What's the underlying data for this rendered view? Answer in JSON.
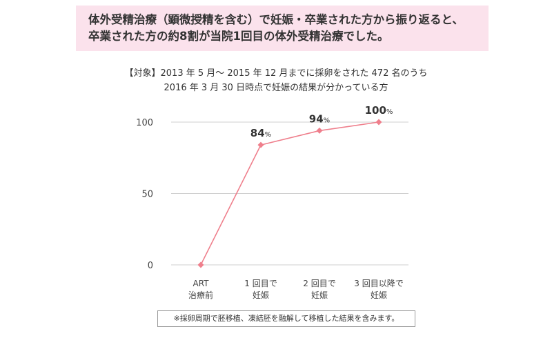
{
  "headline": {
    "line1": "体外受精治療（顕微授精を含む）で妊娠・卒業された方から振り返ると、",
    "line2": "卒業された方の約8割が当院1回目の体外受精治療でした。"
  },
  "subtitle": {
    "line1": "【対象】2013 年 5 月～ 2015 年 12 月までに採卵をされた 472 名のうち",
    "line2": "2016 年 3 月 30 日時点で妊娠の結果が分かっている方"
  },
  "chart_data": {
    "type": "line",
    "categories": [
      [
        "ART",
        "治療前"
      ],
      [
        "1 回目で",
        "妊娠"
      ],
      [
        "2 回目で",
        "妊娠"
      ],
      [
        "3 回目以降で",
        "妊娠"
      ]
    ],
    "series": [
      {
        "values": [
          0,
          84,
          94,
          100
        ]
      }
    ],
    "data_labels": [
      null,
      "84",
      "94",
      "100"
    ],
    "label_unit": "%",
    "ylim": [
      0,
      100
    ],
    "yticks": [
      0,
      50,
      100
    ],
    "grid": true,
    "line_color": "#ef7f8c"
  },
  "footnote": "※採卵周期で胚移植、凍結胚を融解して移植した結果を含みます。"
}
